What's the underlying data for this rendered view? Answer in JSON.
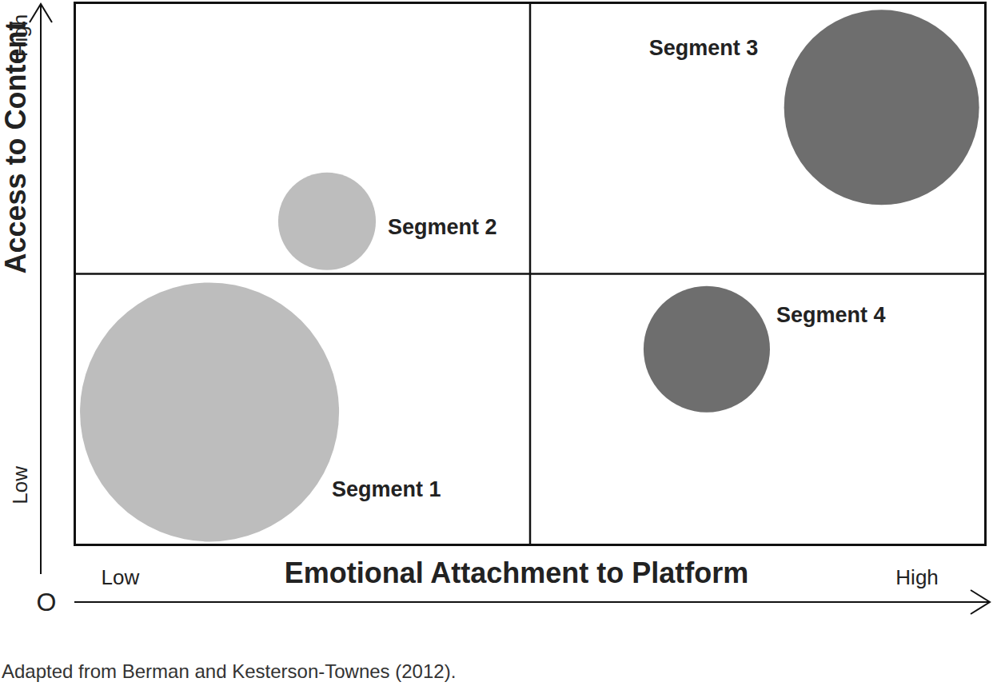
{
  "chart_data": {
    "type": "bubble",
    "caption": "Adapted from Berman and Kesterson-Townes (2012).",
    "x_label": "Emotional Attachment to Platform",
    "y_label": "Access to Content",
    "origin_label": "O",
    "xlim": [
      0,
      100
    ],
    "ylim": [
      0,
      100
    ],
    "xticks": [
      {
        "value": 5,
        "label": "Low"
      },
      {
        "value": 92.5,
        "label": "High"
      }
    ],
    "yticks": [
      {
        "value": 7.5,
        "label": "Low"
      },
      {
        "value": 90,
        "label": "High"
      }
    ],
    "quadrant_lines": {
      "x": 50,
      "y": 50
    },
    "categories": [
      "Segment 1",
      "Segment 2",
      "Segment 3",
      "Segment 4"
    ],
    "x": [
      14.8,
      27.7,
      88.6,
      69.4
    ],
    "values": [
      24.5,
      59.7,
      80.7,
      36.1
    ],
    "sizes": [
      100,
      14.2,
      56.7,
      23.8
    ],
    "colors": [
      "#bdbdbd",
      "#bdbdbd",
      "#6e6e6e",
      "#6e6e6e"
    ]
  }
}
